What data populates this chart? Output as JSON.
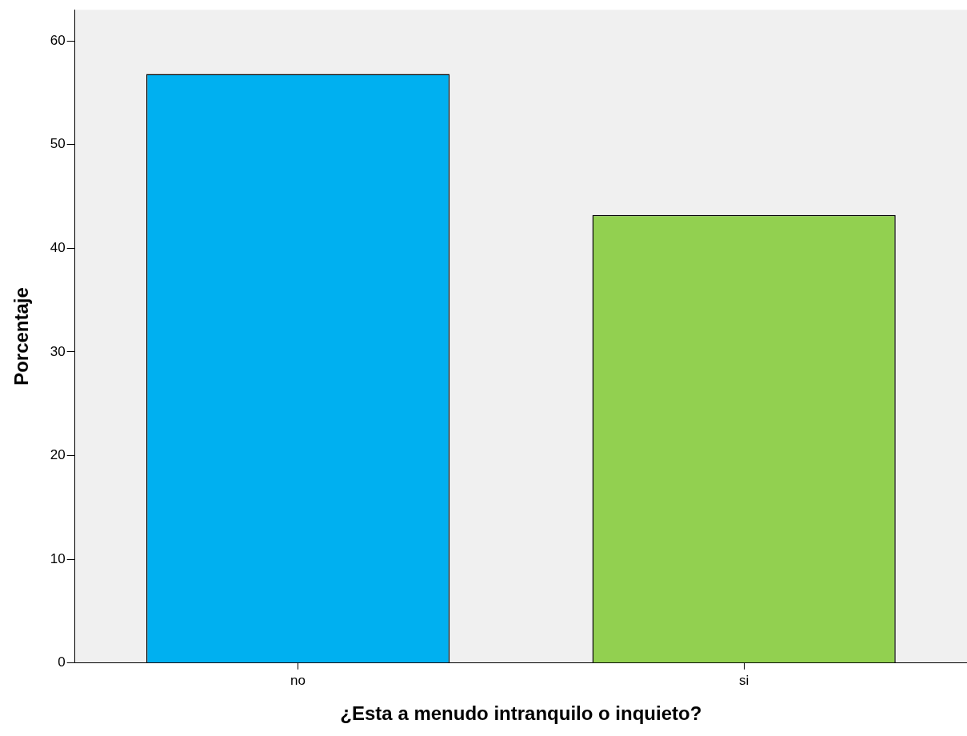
{
  "chart_data": {
    "type": "bar",
    "categories": [
      "no",
      "si"
    ],
    "values": [
      56.8,
      43.2
    ],
    "colors": [
      "#00b0f0",
      "#92d050"
    ],
    "ylim": [
      0,
      63
    ],
    "yticks": [
      0,
      10,
      20,
      30,
      40,
      50,
      60
    ],
    "xlabel": "¿Esta a menudo intranquilo o inquieto?",
    "ylabel": "Porcentaje",
    "grid": false,
    "legend": false
  }
}
